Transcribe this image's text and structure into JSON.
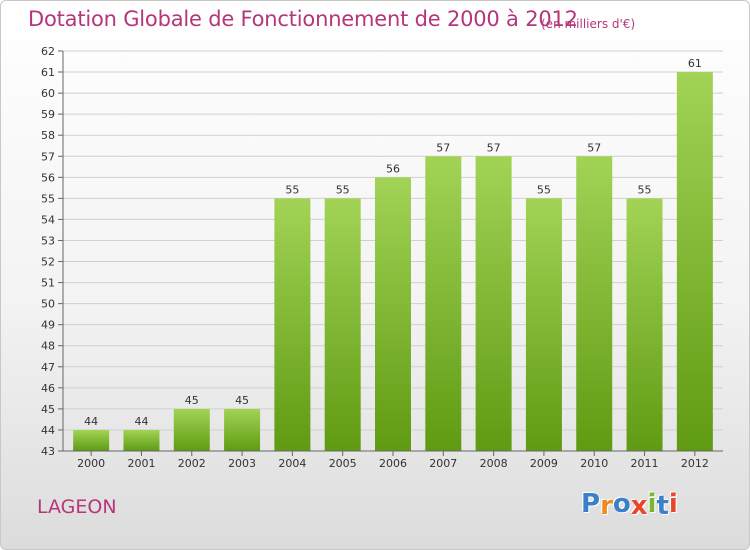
{
  "header": {
    "title": "Dotation Globale de Fonctionnement de 2000 à 2012",
    "subtitle": "(en milliers d'€)"
  },
  "footer": {
    "commune": "LAGEON",
    "logo": {
      "letters": [
        "P",
        "r",
        "o",
        "x",
        "i",
        "t",
        "i"
      ],
      "colors": [
        "#3a7fc8",
        "#f08a1c",
        "#3a7fc8",
        "#e8462a",
        "#7bb531",
        "#3a7fc8",
        "#e8462a"
      ]
    }
  },
  "colors": {
    "bar_light": "#a2d356",
    "bar_dark": "#5f9b12",
    "axis": "#666666",
    "grid": "#d0d0d0",
    "label": "#333333"
  },
  "chart_data": {
    "type": "bar",
    "categories": [
      "2000",
      "2001",
      "2002",
      "2003",
      "2004",
      "2005",
      "2006",
      "2007",
      "2008",
      "2009",
      "2010",
      "2011",
      "2012"
    ],
    "values": [
      44,
      44,
      45,
      45,
      55,
      55,
      56,
      57,
      57,
      55,
      57,
      55,
      61
    ],
    "ylim": [
      43,
      62
    ],
    "yticks": [
      43,
      44,
      45,
      46,
      47,
      48,
      49,
      50,
      51,
      52,
      53,
      54,
      55,
      56,
      57,
      58,
      59,
      60,
      61,
      62
    ],
    "grid": true,
    "legend": "none"
  }
}
